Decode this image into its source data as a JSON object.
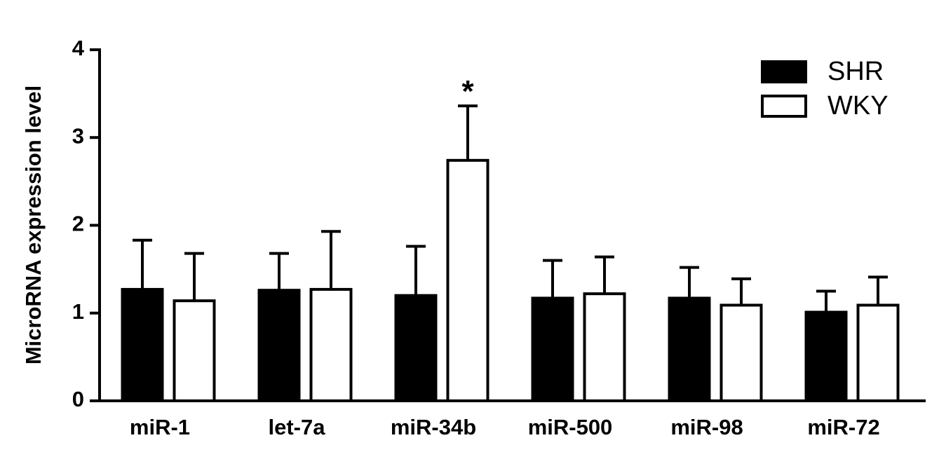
{
  "chart_data": {
    "type": "bar",
    "y_label": "MicroRNA expression level",
    "categories": [
      "miR-1",
      "let-7a",
      "miR-34b",
      "miR-500",
      "miR-98",
      "miR-72"
    ],
    "series": [
      {
        "name": "SHR",
        "color": "#000000",
        "values": [
          1.27,
          1.26,
          1.2,
          1.17,
          1.17,
          1.01
        ],
        "errors": [
          0.56,
          0.42,
          0.56,
          0.43,
          0.35,
          0.24
        ]
      },
      {
        "name": "WKY",
        "color": "#ffffff",
        "values": [
          1.14,
          1.27,
          2.74,
          1.22,
          1.09,
          1.09
        ],
        "errors": [
          0.54,
          0.66,
          0.62,
          0.42,
          0.3,
          0.32
        ],
        "value_annotations": [
          null,
          null,
          "*",
          null,
          null,
          null
        ]
      }
    ],
    "ylim": [
      0,
      4
    ],
    "yticks": [
      0,
      1,
      2,
      3,
      4
    ],
    "legend": "top-right"
  }
}
